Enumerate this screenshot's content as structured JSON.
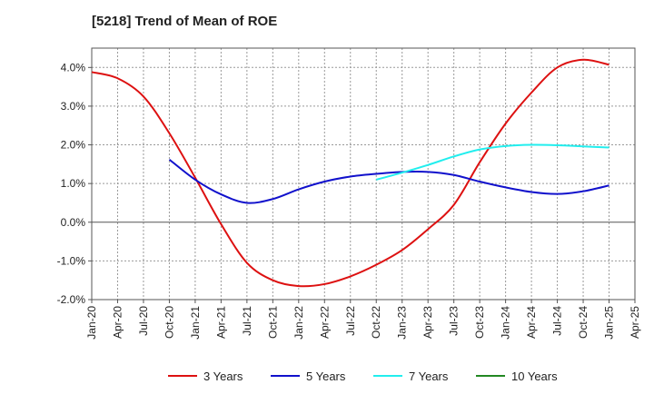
{
  "chart_data": {
    "type": "line",
    "title": "[5218]  Trend of Mean of ROE",
    "xlabel": "",
    "ylabel": "",
    "x_ticks": [
      "Jan-20",
      "Apr-20",
      "Jul-20",
      "Oct-20",
      "Jan-21",
      "Apr-21",
      "Jul-21",
      "Oct-21",
      "Jan-22",
      "Apr-22",
      "Jul-22",
      "Oct-22",
      "Jan-23",
      "Apr-23",
      "Jul-23",
      "Oct-23",
      "Jan-24",
      "Apr-24",
      "Jul-24",
      "Oct-24",
      "Jan-25",
      "Apr-25"
    ],
    "y_ticks": [
      {
        "value": 4.0,
        "label": "4.0%"
      },
      {
        "value": 3.0,
        "label": "3.0%"
      },
      {
        "value": 2.0,
        "label": "2.0%"
      },
      {
        "value": 1.0,
        "label": "1.0%"
      },
      {
        "value": 0.0,
        "label": "0.0%"
      },
      {
        "value": -1.0,
        "label": "-1.0%"
      },
      {
        "value": -2.0,
        "label": "-2.0%"
      }
    ],
    "ylim": [
      -2.0,
      4.5
    ],
    "xlim": [
      "Jan-20",
      "Apr-25"
    ],
    "grid": true,
    "legend_position": "bottom",
    "series": [
      {
        "name": "3 Years",
        "color": "#dd1111",
        "x": [
          "Jan-20",
          "Apr-20",
          "Jul-20",
          "Oct-20",
          "Jan-21",
          "Apr-21",
          "Jul-21",
          "Oct-21",
          "Jan-22",
          "Apr-22",
          "Jul-22",
          "Oct-22",
          "Jan-23",
          "Apr-23",
          "Jul-23",
          "Oct-23",
          "Jan-24",
          "Apr-24",
          "Jul-24",
          "Oct-24",
          "Jan-25"
        ],
        "values": [
          3.88,
          3.72,
          3.25,
          2.3,
          1.15,
          -0.05,
          -1.05,
          -1.5,
          -1.65,
          -1.6,
          -1.4,
          -1.1,
          -0.72,
          -0.18,
          0.45,
          1.55,
          2.55,
          3.35,
          4.0,
          4.2,
          4.07
        ]
      },
      {
        "name": "5 Years",
        "color": "#1111cc",
        "x": [
          "Oct-20",
          "Jan-21",
          "Apr-21",
          "Jul-21",
          "Oct-21",
          "Jan-22",
          "Apr-22",
          "Jul-22",
          "Oct-22",
          "Jan-23",
          "Apr-23",
          "Jul-23",
          "Oct-23",
          "Jan-24",
          "Apr-24",
          "Jul-24",
          "Oct-24",
          "Jan-25"
        ],
        "values": [
          1.62,
          1.1,
          0.72,
          0.5,
          0.6,
          0.85,
          1.05,
          1.18,
          1.25,
          1.3,
          1.3,
          1.22,
          1.05,
          0.9,
          0.78,
          0.73,
          0.8,
          0.95
        ]
      },
      {
        "name": "7 Years",
        "color": "#22eeee",
        "x": [
          "Oct-22",
          "Jan-23",
          "Apr-23",
          "Jul-23",
          "Oct-23",
          "Jan-24",
          "Apr-24",
          "Jul-24",
          "Oct-24",
          "Jan-25"
        ],
        "values": [
          1.1,
          1.28,
          1.48,
          1.7,
          1.88,
          1.97,
          2.0,
          1.99,
          1.96,
          1.93
        ]
      },
      {
        "name": "10 Years",
        "color": "#228822",
        "x": [],
        "values": []
      }
    ]
  }
}
